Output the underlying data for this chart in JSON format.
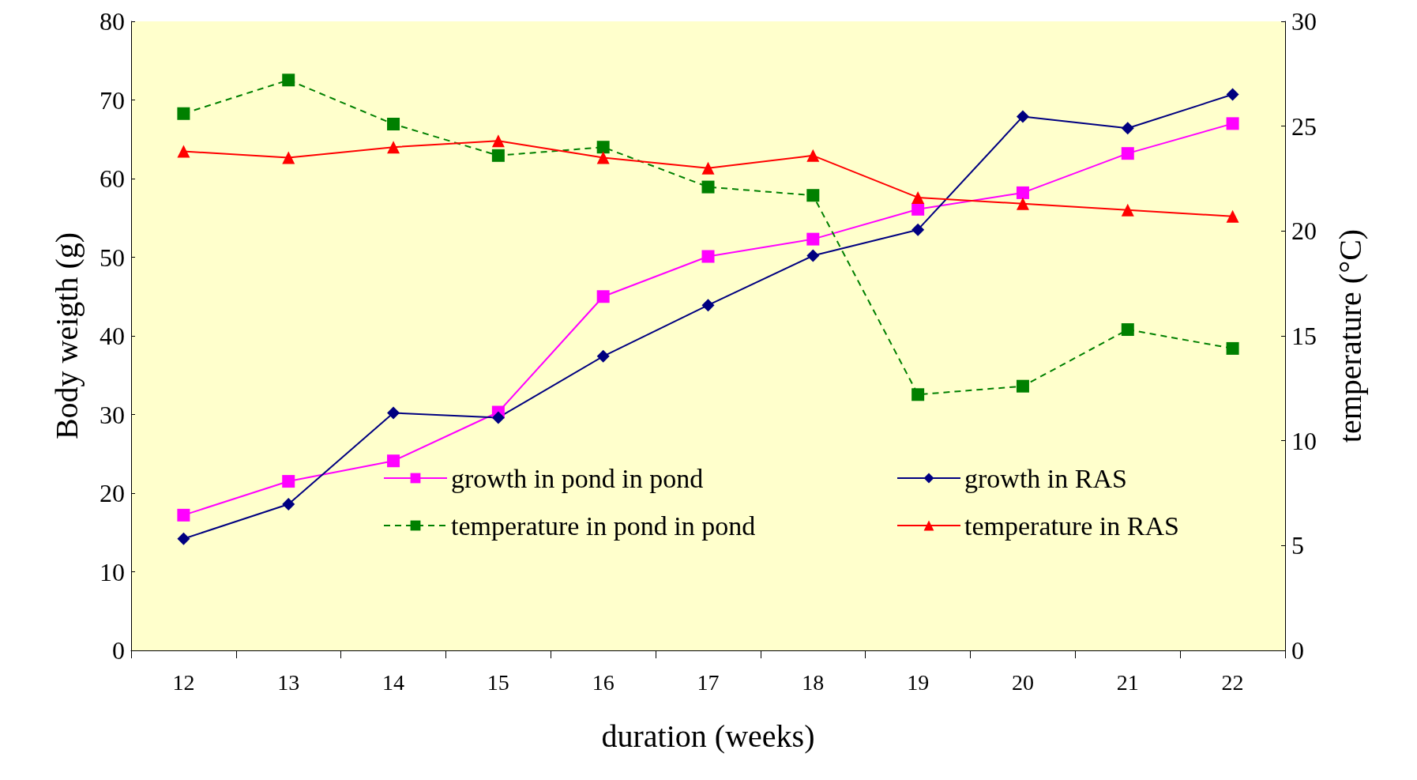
{
  "chart_data": {
    "type": "line",
    "xlabel": "duration (weeks)",
    "ylabel": "Body weigth (g)",
    "y2label": "temperature (°C)",
    "categories": [
      "12",
      "13",
      "14",
      "15",
      "16",
      "17",
      "18",
      "19",
      "20",
      "21",
      "22"
    ],
    "series": [
      {
        "name": "growth in pond in pond",
        "color": "#ff00ff",
        "marker": "square",
        "line_style": "solid",
        "values": [
          17.2,
          21.5,
          24.1,
          30.3,
          45.0,
          50.1,
          52.3,
          56.1,
          58.2,
          63.2,
          67.0
        ]
      },
      {
        "name": "growth in RAS",
        "color": "#000080",
        "marker": "diamond",
        "line_style": "solid",
        "values": [
          14.2,
          18.6,
          30.2,
          29.6,
          37.4,
          43.9,
          50.2,
          53.5,
          67.9,
          66.4,
          70.7
        ]
      },
      {
        "name": "temperature in pond in pond",
        "color": "#008000",
        "marker": "square",
        "line_style": "dashed",
        "axis": "y2",
        "values": [
          25.6,
          27.2,
          25.1,
          23.6,
          24.0,
          22.1,
          21.7,
          12.2,
          12.6,
          15.3,
          14.4
        ]
      },
      {
        "name": "temperature in RAS",
        "color": "#ff0000",
        "marker": "triangle",
        "line_style": "solid",
        "axis": "y2",
        "values": [
          23.8,
          23.5,
          24.0,
          24.3,
          23.5,
          23.0,
          23.6,
          21.6,
          21.3,
          21.0,
          20.7
        ]
      }
    ],
    "ylim": [
      0,
      80
    ],
    "yticks": [
      0,
      10,
      20,
      30,
      40,
      50,
      60,
      70,
      80
    ],
    "y2lim": [
      0,
      30
    ],
    "y2ticks": [
      0,
      5,
      10,
      15,
      20,
      25,
      30
    ],
    "grid": false,
    "legend": "bottom"
  }
}
